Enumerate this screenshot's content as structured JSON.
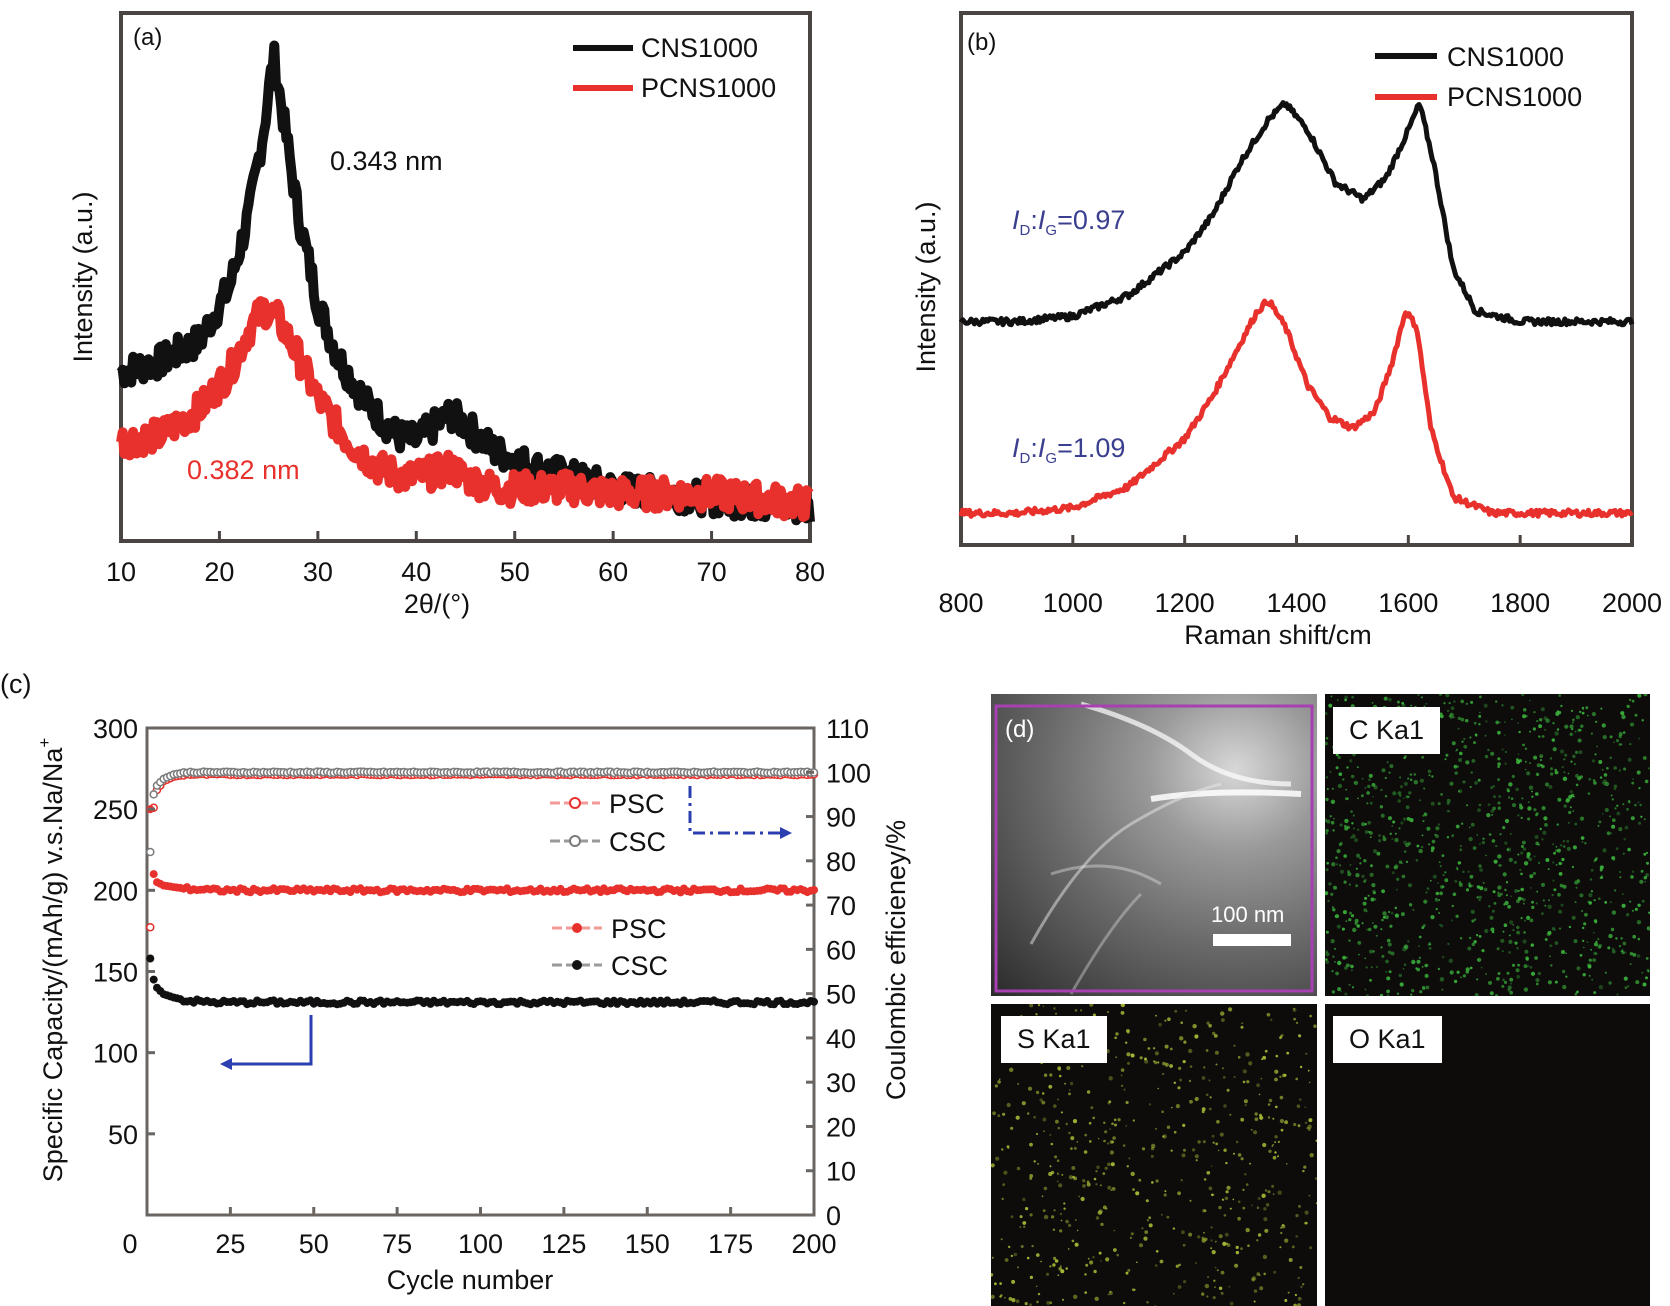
{
  "colors": {
    "black_series": "#111111",
    "red_series": "#e8312c",
    "annotation_blue": "#3b3f8f",
    "arrow_blue": "#2b3fb0",
    "frame": "#4a4542",
    "map_frame": "#a83fb3",
    "c_green": "#3fbf3f",
    "s_yellow": "#b7c83a"
  },
  "chart_data": [
    {
      "panel": "(a)",
      "type": "line",
      "xlabel": "2θ/(°)",
      "ylabel": "Intensity (a.u.)",
      "xlim": [
        10,
        80
      ],
      "xticks": [
        "10",
        "20",
        "30",
        "40",
        "50",
        "60",
        "70",
        "80"
      ],
      "ylim": [
        0,
        1
      ],
      "legend_position": "top-right",
      "annotations": [
        {
          "text": "0.343 nm",
          "color": "#111111"
        },
        {
          "text": "0.382 nm",
          "color": "#e8312c"
        }
      ],
      "series": [
        {
          "name": "CNS1000",
          "color": "#111111",
          "x": [
            10,
            14,
            18,
            21,
            23,
            24.5,
            25.5,
            26.5,
            28,
            30,
            32,
            35,
            38,
            40,
            42,
            43.5,
            45,
            48,
            52,
            56,
            60,
            65,
            70,
            75,
            80
          ],
          "y": [
            0.32,
            0.34,
            0.38,
            0.48,
            0.62,
            0.78,
            0.92,
            0.8,
            0.62,
            0.45,
            0.35,
            0.26,
            0.2,
            0.19,
            0.22,
            0.24,
            0.22,
            0.17,
            0.14,
            0.12,
            0.1,
            0.09,
            0.08,
            0.07,
            0.06
          ]
        },
        {
          "name": "PCNS1000",
          "color": "#e8312c",
          "x": [
            10,
            14,
            18,
            21,
            23,
            24.5,
            26,
            28,
            30,
            33,
            36,
            39,
            42,
            43.5,
            45,
            48,
            52,
            56,
            60,
            65,
            70,
            75,
            80
          ],
          "y": [
            0.19,
            0.2,
            0.25,
            0.32,
            0.4,
            0.44,
            0.42,
            0.35,
            0.27,
            0.19,
            0.14,
            0.12,
            0.13,
            0.14,
            0.12,
            0.1,
            0.1,
            0.1,
            0.09,
            0.09,
            0.09,
            0.08,
            0.07
          ]
        }
      ]
    },
    {
      "panel": "(b)",
      "type": "line",
      "xlabel": "Raman shift/cm",
      "ylabel": "Intensity (a.u.)",
      "xlim": [
        800,
        2000
      ],
      "xticks": [
        "800",
        "1000",
        "1200",
        "1400",
        "1600",
        "1800",
        "2000"
      ],
      "ylim": [
        0,
        1
      ],
      "legend_position": "top-right",
      "annotations": [
        {
          "text": "I_D:I_G=0.97",
          "color": "#3b3f8f"
        },
        {
          "text": "I_D:I_G=1.09",
          "color": "#3b3f8f"
        }
      ],
      "series": [
        {
          "name": "CNS1000",
          "color": "#111111",
          "x": [
            800,
            900,
            1000,
            1100,
            1200,
            1250,
            1300,
            1350,
            1380,
            1420,
            1470,
            1520,
            1560,
            1600,
            1620,
            1645,
            1680,
            1720,
            1800,
            1900,
            2000
          ],
          "y": [
            0.42,
            0.42,
            0.43,
            0.47,
            0.55,
            0.62,
            0.72,
            0.8,
            0.83,
            0.78,
            0.68,
            0.65,
            0.69,
            0.78,
            0.83,
            0.72,
            0.52,
            0.44,
            0.42,
            0.42,
            0.42
          ]
        },
        {
          "name": "PCNS1000",
          "color": "#e8312c",
          "x": [
            800,
            900,
            1000,
            1100,
            1200,
            1250,
            1300,
            1330,
            1350,
            1380,
            1420,
            1460,
            1500,
            1540,
            1570,
            1595,
            1615,
            1640,
            1680,
            1750,
            1850,
            2000
          ],
          "y": [
            0.06,
            0.06,
            0.07,
            0.11,
            0.2,
            0.28,
            0.38,
            0.44,
            0.46,
            0.41,
            0.3,
            0.24,
            0.22,
            0.25,
            0.34,
            0.44,
            0.41,
            0.22,
            0.09,
            0.06,
            0.06,
            0.06
          ]
        }
      ]
    },
    {
      "panel": "(c)",
      "type": "scatter",
      "xlabel": "Cycle number",
      "ylabel": "Specific Capacity/(mAh/g) v.s.Na/Na+",
      "ylabel_right": "Coulombic efficieney/%",
      "xlim": [
        0,
        200
      ],
      "xticks": [
        "0",
        "25",
        "50",
        "75",
        "100",
        "125",
        "150",
        "175",
        "200"
      ],
      "ylim": [
        0,
        300
      ],
      "yticks": [
        "50",
        "100",
        "150",
        "200",
        "250",
        "300"
      ],
      "ylim_right": [
        0,
        110
      ],
      "yticks_right": [
        "0",
        "10",
        "20",
        "30",
        "40",
        "50",
        "60",
        "70",
        "80",
        "90",
        "100",
        "110"
      ],
      "legend_position": "center-right",
      "series": [
        {
          "name": "PSC",
          "axis": "right",
          "marker": "open-circle",
          "color": "#e8312c",
          "x": [
            1,
            2,
            3,
            5,
            8,
            12,
            20,
            50,
            100,
            150,
            200
          ],
          "y": [
            65,
            92,
            96,
            98,
            99,
            99.5,
            99.5,
            99.5,
            99.5,
            99.5,
            99.5
          ]
        },
        {
          "name": "CSC",
          "axis": "right",
          "marker": "open-circle",
          "color": "#7a7a7a",
          "x": [
            1,
            2,
            3,
            5,
            8,
            12,
            20,
            50,
            100,
            150,
            200
          ],
          "y": [
            82,
            95,
            97,
            98.5,
            99.5,
            100,
            100,
            100,
            100,
            100,
            100
          ]
        },
        {
          "name": "PSC",
          "axis": "left",
          "marker": "filled-circle",
          "color": "#e8312c",
          "x": [
            1,
            2,
            3,
            5,
            8,
            12,
            20,
            50,
            100,
            150,
            200
          ],
          "y": [
            250,
            210,
            205,
            203,
            202,
            201,
            200,
            200,
            200,
            200,
            200
          ]
        },
        {
          "name": "CSC",
          "axis": "left",
          "marker": "filled-circle",
          "color": "#111111",
          "x": [
            1,
            2,
            3,
            5,
            8,
            12,
            20,
            50,
            100,
            150,
            200
          ],
          "y": [
            158,
            145,
            140,
            136,
            134,
            132,
            131,
            131,
            131,
            131,
            131
          ]
        }
      ]
    }
  ],
  "panel_a": {
    "label": "(a)",
    "legend": [
      "CNS1000",
      "PCNS1000"
    ],
    "note_black": "0.343 nm",
    "note_red": "0.382 nm"
  },
  "panel_b": {
    "label": "(b)",
    "legend": [
      "CNS1000",
      "PCNS1000"
    ],
    "ratio1_value": "=0.97",
    "ratio2_value": "=1.09",
    "ratio_I": "I",
    "ratio_D": "D",
    "ratio_colon": ":",
    "ratio_G": "G"
  },
  "panel_c": {
    "label": "(c)",
    "legend_ce": [
      "PSC",
      "CSC"
    ],
    "legend_cap": [
      "PSC",
      "CSC"
    ],
    "ylabel_sup": "+"
  },
  "panel_d": {
    "label": "(d)",
    "scale_bar": "100 nm",
    "maps": [
      "C Ka1",
      "S Ka1",
      "O Ka1"
    ]
  }
}
